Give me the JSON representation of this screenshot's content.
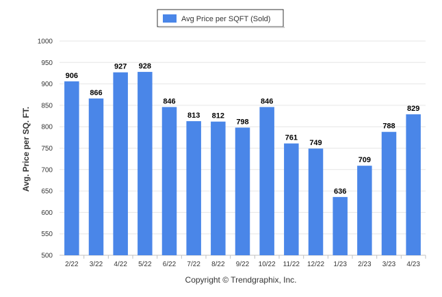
{
  "chart_data": {
    "type": "bar",
    "legend": {
      "label": "Avg Price per SQFT (Sold)",
      "placement": "top-center",
      "color": "#4a86e8"
    },
    "ylabel": "Avg. Price per SQ. FT.",
    "xlabel": "",
    "ylim": [
      500,
      1000
    ],
    "yticks": [
      500,
      550,
      600,
      650,
      700,
      750,
      800,
      850,
      900,
      950,
      1000
    ],
    "grid": true,
    "series": [
      {
        "name": "Avg Price per SQFT (Sold)",
        "color": "#4a86e8",
        "values": [
          906,
          866,
          927,
          928,
          846,
          813,
          812,
          798,
          846,
          761,
          749,
          636,
          709,
          788,
          829
        ]
      }
    ],
    "categories": [
      "2/22",
      "3/22",
      "4/22",
      "5/22",
      "6/22",
      "7/22",
      "8/22",
      "9/22",
      "10/22",
      "11/22",
      "12/22",
      "1/23",
      "2/23",
      "3/23",
      "4/23"
    ],
    "data_labels": [
      "906",
      "866",
      "927",
      "928",
      "846",
      "813",
      "812",
      "798",
      "846",
      "761",
      "749",
      "636",
      "709",
      "788",
      "829"
    ]
  },
  "footer": {
    "copyright": "Copyright © Trendgraphix, Inc."
  }
}
